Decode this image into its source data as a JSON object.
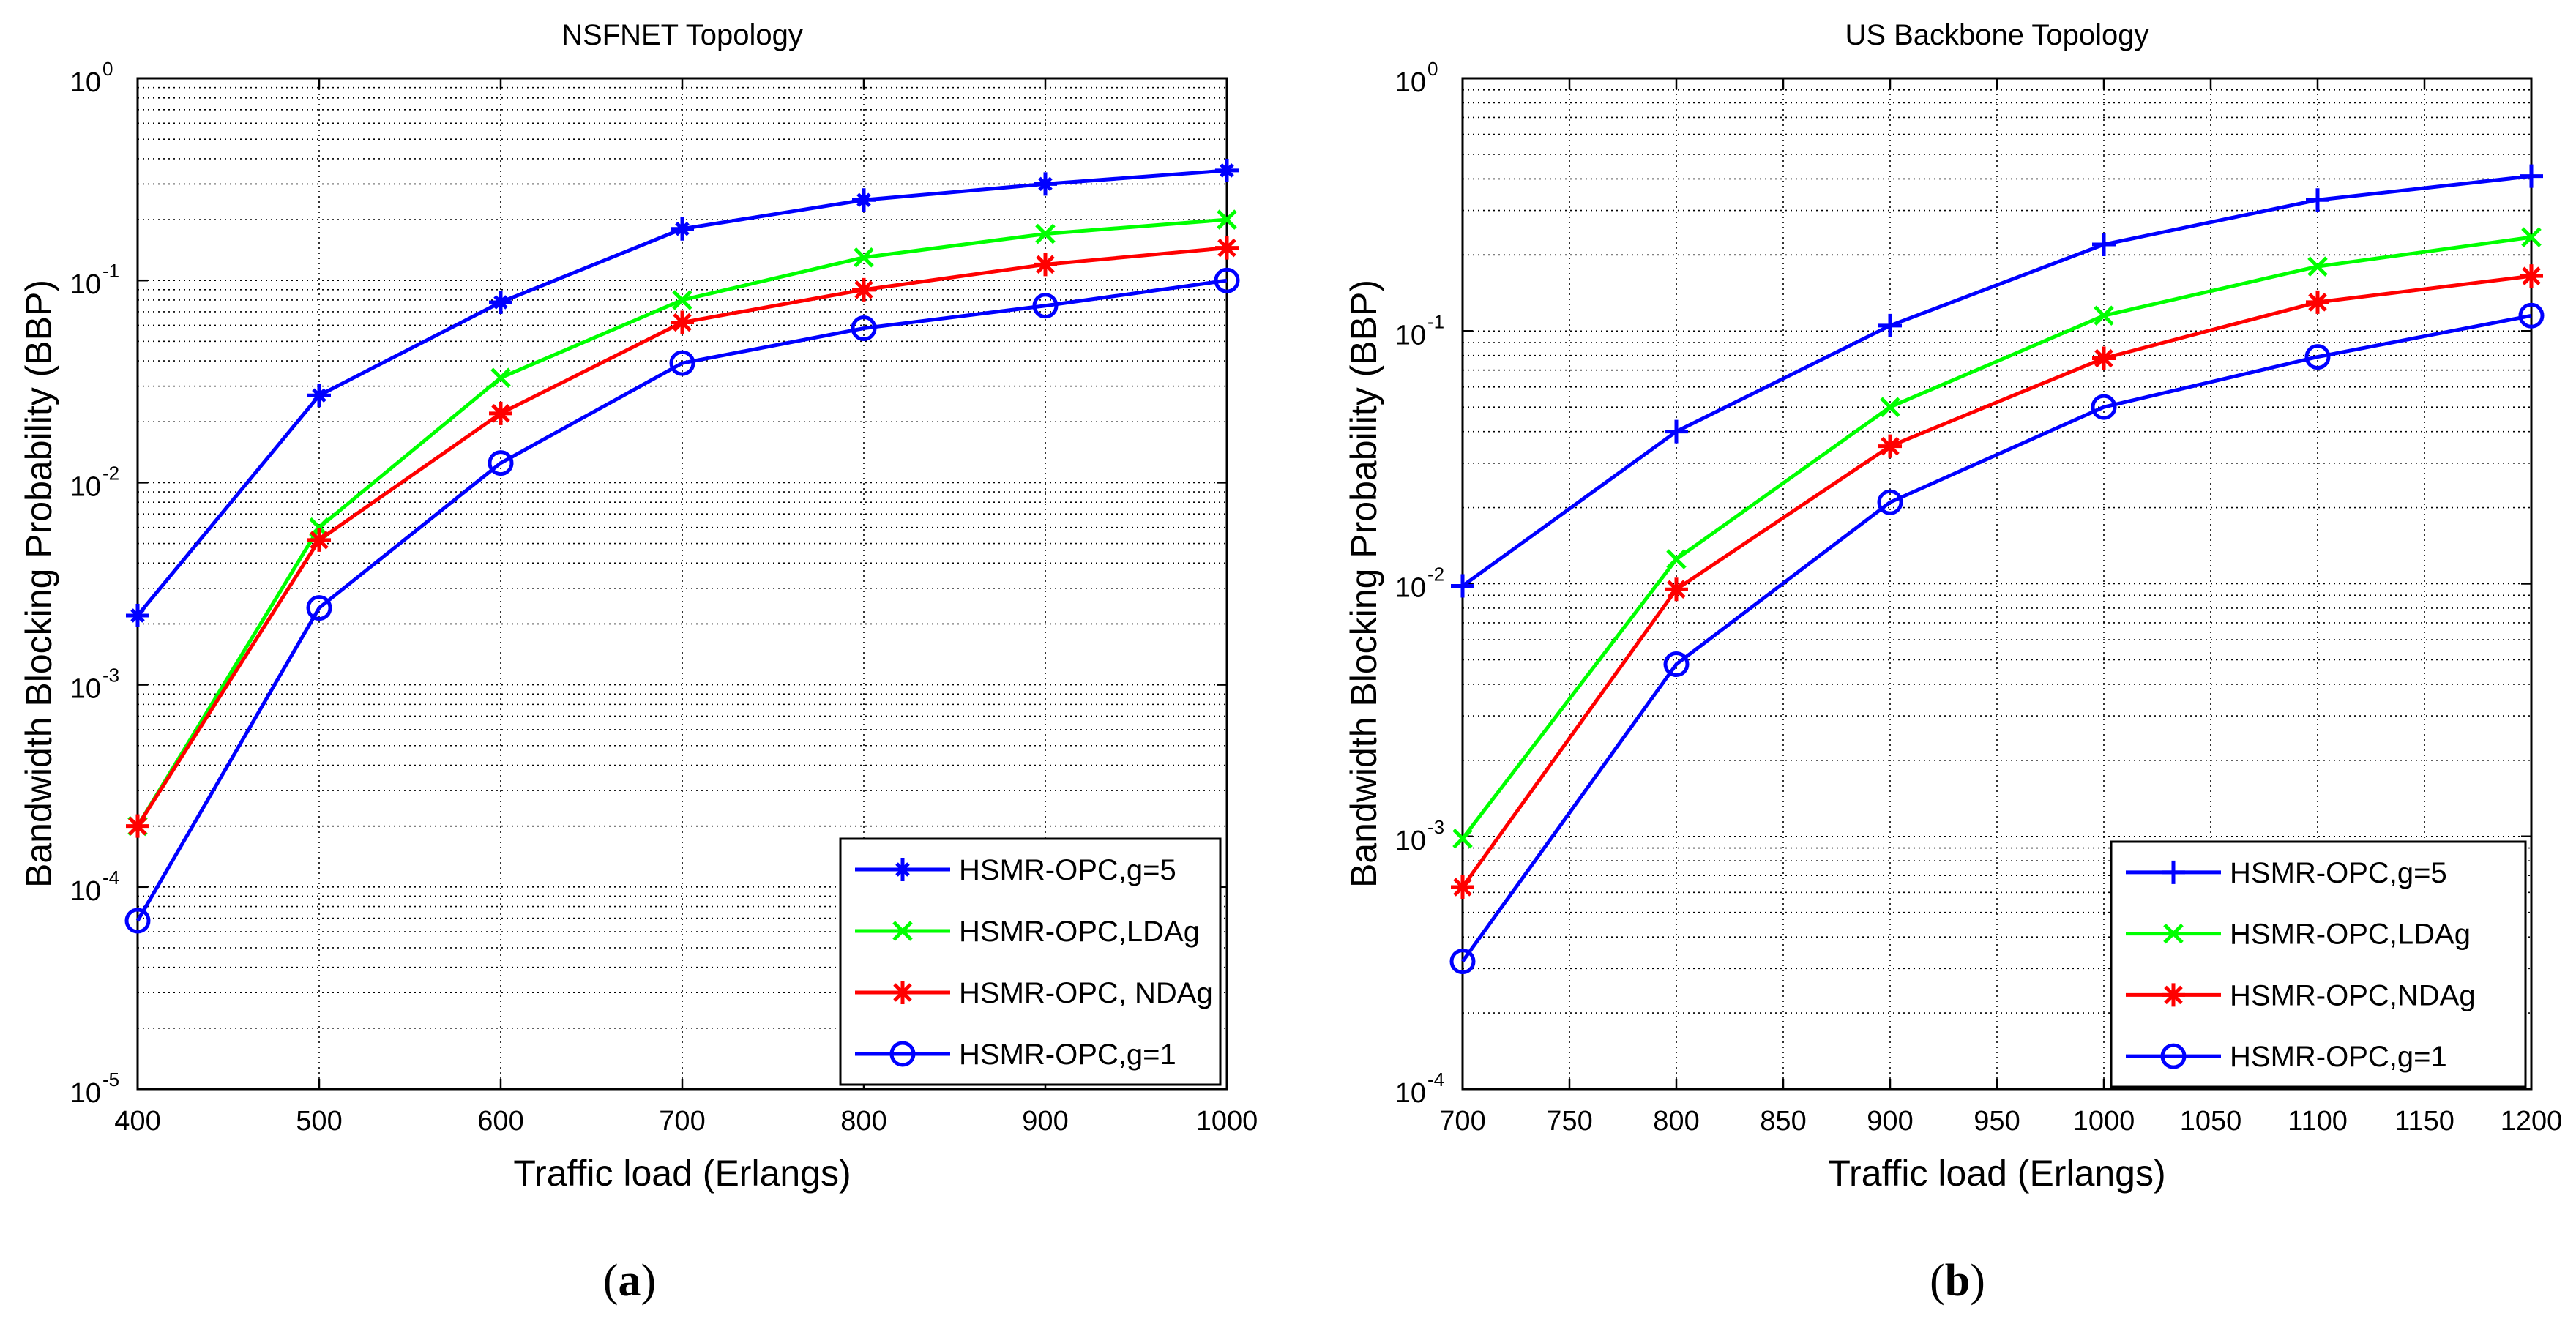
{
  "chart_data": [
    {
      "type": "line",
      "title": "NSFNET Topology",
      "xlabel": "Traffic load (Erlangs)",
      "ylabel": "Bandwidth Blocking Probability (BBP)",
      "yscale": "log",
      "xlim": [
        400,
        1000
      ],
      "ylim": [
        1e-05,
        1
      ],
      "x_ticks": [
        400,
        500,
        600,
        700,
        800,
        900,
        1000
      ],
      "y_tick_exponents": [
        -5,
        -4,
        -3,
        -2,
        -1,
        0
      ],
      "y_tick_base": "10",
      "grid": true,
      "legend_position": "bottom-right",
      "sublabel_open": "(",
      "sublabel": "a",
      "sublabel_close": ")",
      "x": [
        400,
        500,
        600,
        700,
        800,
        900,
        1000
      ],
      "series": [
        {
          "name": "HSMR-OPC,g=5",
          "color": "#0000ff",
          "marker": "plus-star",
          "values": [
            0.0022,
            0.027,
            0.078,
            0.18,
            0.25,
            0.3,
            0.35
          ]
        },
        {
          "name": "HSMR-OPC,LDAg",
          "color": "#00ff00",
          "marker": "x",
          "values": [
            0.0002,
            0.006,
            0.033,
            0.08,
            0.13,
            0.17,
            0.2
          ]
        },
        {
          "name": "HSMR-OPC, NDAg",
          "color": "#ff0000",
          "marker": "star",
          "values": [
            0.0002,
            0.0052,
            0.022,
            0.062,
            0.09,
            0.12,
            0.145
          ]
        },
        {
          "name": "HSMR-OPC,g=1",
          "color": "#0000ff",
          "marker": "circle",
          "values": [
            6.8e-05,
            0.0024,
            0.0125,
            0.039,
            0.058,
            0.075,
            0.1
          ]
        }
      ]
    },
    {
      "type": "line",
      "title": "US Backbone Topology",
      "xlabel": "Traffic load (Erlangs)",
      "ylabel": "Bandwidth Blocking Probability (BBP)",
      "yscale": "log",
      "xlim": [
        700,
        1200
      ],
      "ylim": [
        0.0001,
        1
      ],
      "x_ticks": [
        700,
        750,
        800,
        850,
        900,
        950,
        1000,
        1050,
        1100,
        1150,
        1200
      ],
      "y_tick_exponents": [
        -4,
        -3,
        -2,
        -1,
        0
      ],
      "y_tick_base": "10",
      "grid": true,
      "legend_position": "bottom-right",
      "sublabel_open": "(",
      "sublabel": "b",
      "sublabel_close": ")",
      "x": [
        700,
        800,
        900,
        1000,
        1100,
        1200
      ],
      "series": [
        {
          "name": "HSMR-OPC,g=5",
          "color": "#0000ff",
          "marker": "plus",
          "values": [
            0.0098,
            0.04,
            0.105,
            0.22,
            0.33,
            0.41
          ]
        },
        {
          "name": "HSMR-OPC,LDAg",
          "color": "#00ff00",
          "marker": "x",
          "values": [
            0.00098,
            0.0125,
            0.05,
            0.115,
            0.18,
            0.235
          ]
        },
        {
          "name": "HSMR-OPC,NDAg",
          "color": "#ff0000",
          "marker": "star",
          "values": [
            0.00063,
            0.0095,
            0.035,
            0.078,
            0.13,
            0.165
          ]
        },
        {
          "name": "HSMR-OPC,g=1",
          "color": "#0000ff",
          "marker": "circle",
          "values": [
            0.00032,
            0.0048,
            0.021,
            0.05,
            0.079,
            0.115
          ]
        }
      ]
    }
  ]
}
